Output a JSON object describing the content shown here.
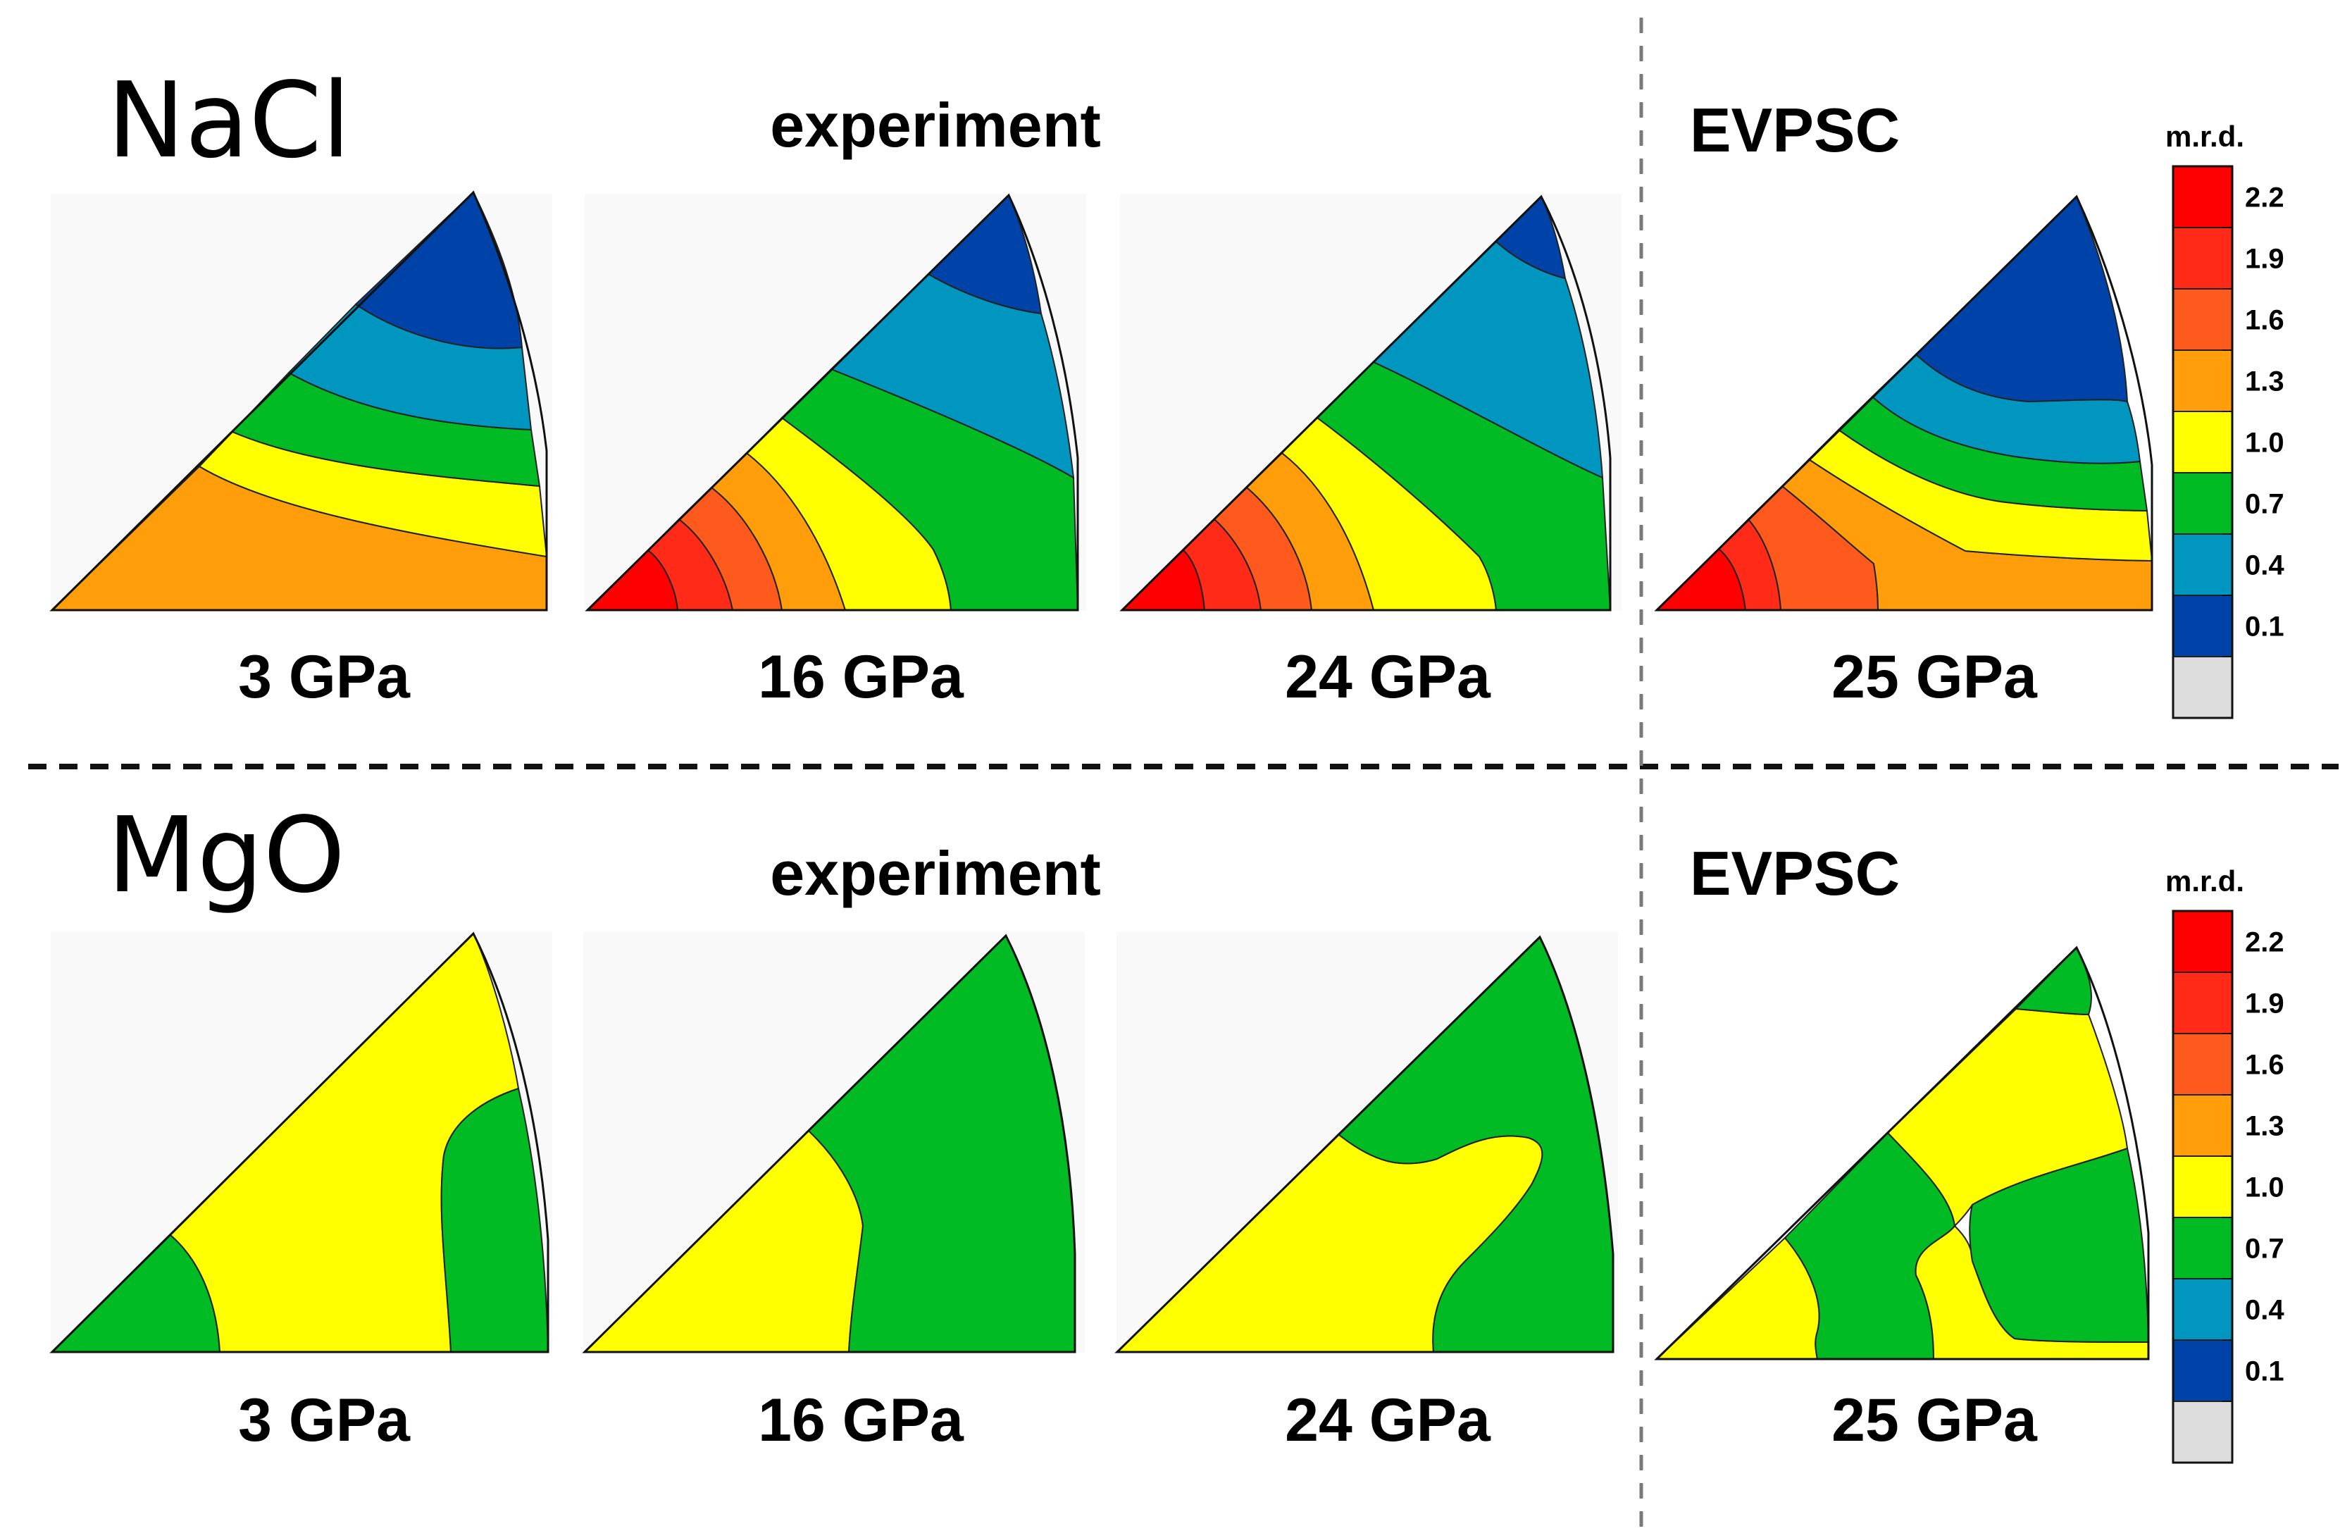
{
  "rows": [
    {
      "sample": "NaCl",
      "experiment_header": "experiment",
      "model_header": "EVPSC",
      "plots": [
        {
          "label": "3 GPa",
          "group": "experiment"
        },
        {
          "label": "16 GPa",
          "group": "experiment"
        },
        {
          "label": "24 GPa",
          "group": "experiment"
        },
        {
          "label": "25 GPa",
          "group": "EVPSC"
        }
      ]
    },
    {
      "sample": "MgO",
      "experiment_header": "experiment",
      "model_header": "EVPSC",
      "plots": [
        {
          "label": "3 GPa",
          "group": "experiment"
        },
        {
          "label": "16 GPa",
          "group": "experiment"
        },
        {
          "label": "24 GPa",
          "group": "experiment"
        },
        {
          "label": "25 GPa",
          "group": "EVPSC"
        }
      ]
    }
  ],
  "colorbar": {
    "title": "m.r.d.",
    "ticks": [
      "2.2",
      "1.9",
      "1.6",
      "1.3",
      "1.0",
      "0.7",
      "0.4",
      "0.1"
    ],
    "colors": [
      "#ff0000",
      "#ff2a18",
      "#ff5a1e",
      "#ff9e0a",
      "#ffff00",
      "#00bb24",
      "#0096c0",
      "#0043a8",
      "#dcdcdc"
    ]
  }
}
